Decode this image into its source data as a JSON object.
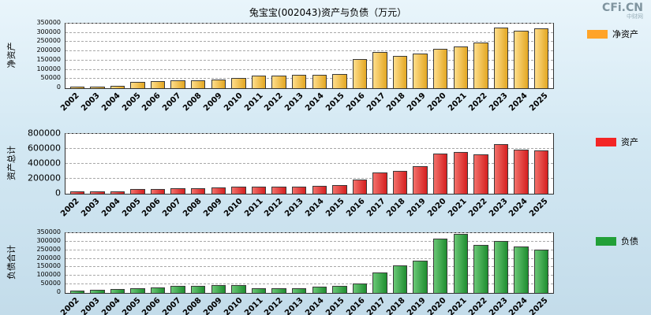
{
  "page": {
    "logo": "CFi.CN",
    "logo_sub": "中财网",
    "title": "兔宝宝(002043)资产与负债（万元）"
  },
  "chart_data": [
    {
      "type": "bar",
      "name": "net-assets",
      "axis_label": "净资产",
      "legend_label": "净资产",
      "colors": {
        "light": "#FFDE8C",
        "dark": "#E3A722",
        "legend": "#FFA428"
      },
      "ylim": [
        0,
        350000
      ],
      "yticks": [
        0,
        50000,
        100000,
        150000,
        200000,
        250000,
        300000,
        350000
      ],
      "categories": [
        "2002",
        "2003",
        "2004",
        "2005",
        "2006",
        "2007",
        "2008",
        "2009",
        "2010",
        "2011",
        "2012",
        "2013",
        "2014",
        "2015",
        "2016",
        "2017",
        "2018",
        "2019",
        "2020",
        "2021",
        "2022",
        "2023",
        "2024",
        "2025"
      ],
      "values": [
        10000,
        10000,
        13000,
        35000,
        38000,
        41000,
        44000,
        47000,
        55000,
        67000,
        70000,
        72000,
        74000,
        78000,
        160000,
        198000,
        175000,
        188000,
        213000,
        228000,
        248000,
        330000,
        312000,
        325000
      ]
    },
    {
      "type": "bar",
      "name": "total-assets",
      "axis_label": "资产总计",
      "legend_label": "资产",
      "colors": {
        "light": "#F2716B",
        "dark": "#D51F1F",
        "legend": "#F32525"
      },
      "ylim": [
        0,
        800000
      ],
      "yticks": [
        0,
        200000,
        400000,
        600000,
        800000
      ],
      "categories": [
        "2002",
        "2003",
        "2004",
        "2005",
        "2006",
        "2007",
        "2008",
        "2009",
        "2010",
        "2011",
        "2012",
        "2013",
        "2014",
        "2015",
        "2016",
        "2017",
        "2018",
        "2019",
        "2020",
        "2021",
        "2022",
        "2023",
        "2024",
        "2025"
      ],
      "values": [
        27000,
        27000,
        32000,
        60000,
        65000,
        70000,
        74000,
        80000,
        90000,
        96000,
        91000,
        99000,
        108000,
        118000,
        190000,
        288000,
        305000,
        370000,
        540000,
        556000,
        530000,
        668000,
        592000,
        580000
      ]
    },
    {
      "type": "bar",
      "name": "total-liabilities",
      "axis_label": "负债合计",
      "legend_label": "负债",
      "colors": {
        "light": "#6BC877",
        "dark": "#1E8D2F",
        "legend": "#22A038"
      },
      "ylim": [
        0,
        350000
      ],
      "yticks": [
        0,
        50000,
        100000,
        150000,
        200000,
        250000,
        300000,
        350000
      ],
      "categories": [
        "2002",
        "2003",
        "2004",
        "2005",
        "2006",
        "2007",
        "2008",
        "2009",
        "2010",
        "2011",
        "2012",
        "2013",
        "2014",
        "2015",
        "2016",
        "2017",
        "2018",
        "2019",
        "2020",
        "2021",
        "2022",
        "2023",
        "2024",
        "2025"
      ],
      "values": [
        16000,
        18000,
        21000,
        28000,
        34000,
        40000,
        42000,
        44000,
        46000,
        30000,
        26000,
        29000,
        36000,
        42000,
        55000,
        120000,
        160000,
        188000,
        318000,
        345000,
        282000,
        305000,
        270000,
        255000
      ]
    }
  ]
}
